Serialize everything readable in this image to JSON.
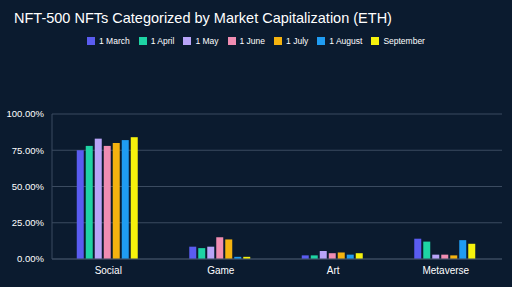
{
  "chart_data": {
    "type": "bar",
    "title": "NFT-500 NFTs Categorized by Market Capitalization (ETH)",
    "categories": [
      "Social",
      "Game",
      "Art",
      "Metaverse"
    ],
    "series": [
      {
        "name": "1 March",
        "color": "#5a5cf0",
        "values": [
          75,
          8.5,
          2.5,
          14
        ]
      },
      {
        "name": "1 April",
        "color": "#1ed4a4",
        "values": [
          78,
          7.5,
          2.5,
          12
        ]
      },
      {
        "name": "1 May",
        "color": "#b8a4f8",
        "values": [
          83,
          8.5,
          5.5,
          3
        ]
      },
      {
        "name": "1 June",
        "color": "#f08db2",
        "values": [
          78,
          15,
          4,
          3
        ]
      },
      {
        "name": "1 July",
        "color": "#f5b30f",
        "values": [
          80,
          13.5,
          4.5,
          2.5
        ]
      },
      {
        "name": "1 August",
        "color": "#1f9cf2",
        "values": [
          82,
          1.5,
          3,
          13
        ]
      },
      {
        "name": "September",
        "color": "#f6f20c",
        "values": [
          84,
          1.5,
          4,
          10.5
        ]
      }
    ],
    "ylim": [
      0,
      100
    ],
    "yticks": [
      {
        "value": 0,
        "label": "0.00%"
      },
      {
        "value": 25,
        "label": "25.00%"
      },
      {
        "value": 50,
        "label": "50.00%"
      },
      {
        "value": 75,
        "label": "75.00%"
      },
      {
        "value": 100,
        "label": "100.00%"
      }
    ],
    "grid": true,
    "legend": "top"
  }
}
